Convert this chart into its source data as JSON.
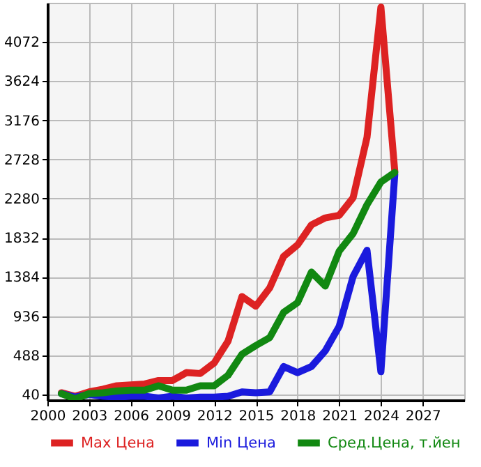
{
  "chart_data": {
    "type": "line",
    "x": [
      2001,
      2002,
      2003,
      2004,
      2005,
      2006,
      2007,
      2008,
      2009,
      2010,
      2011,
      2012,
      2013,
      2014,
      2015,
      2016,
      2017,
      2018,
      2019,
      2020,
      2021,
      2022,
      2023,
      2024,
      2025
    ],
    "series": [
      {
        "name": "Max Цена",
        "color": "#dd2222",
        "values": [
          60,
          20,
          70,
          100,
          140,
          150,
          160,
          200,
          200,
          290,
          280,
          400,
          650,
          1160,
          1050,
          1260,
          1620,
          1750,
          1980,
          2060,
          2090,
          2290,
          2980,
          4470,
          2590
        ]
      },
      {
        "name": "Min Цена",
        "color": "#1a1add",
        "values": [
          50,
          10,
          40,
          20,
          10,
          20,
          20,
          0,
          20,
          0,
          10,
          10,
          20,
          70,
          60,
          70,
          360,
          290,
          360,
          540,
          820,
          1390,
          1690,
          300,
          2560
        ]
      },
      {
        "name": "Сред.Цена, т.йен",
        "color": "#118811",
        "values": [
          50,
          -10,
          50,
          60,
          80,
          90,
          90,
          140,
          90,
          90,
          140,
          140,
          260,
          500,
          600,
          690,
          980,
          1090,
          1440,
          1280,
          1680,
          1880,
          2210,
          2470,
          2580
        ]
      }
    ],
    "xlim": [
      2000,
      2030
    ],
    "xticks": [
      2000,
      2003,
      2006,
      2009,
      2012,
      2015,
      2018,
      2021,
      2024,
      2027
    ],
    "ylim": [
      -24,
      4520
    ],
    "yticks": [
      40,
      488,
      936,
      1384,
      1832,
      2280,
      2728,
      3176,
      3624,
      4072
    ],
    "grid": true,
    "legend": "bottom",
    "line_style": "solid",
    "marker": "none"
  }
}
